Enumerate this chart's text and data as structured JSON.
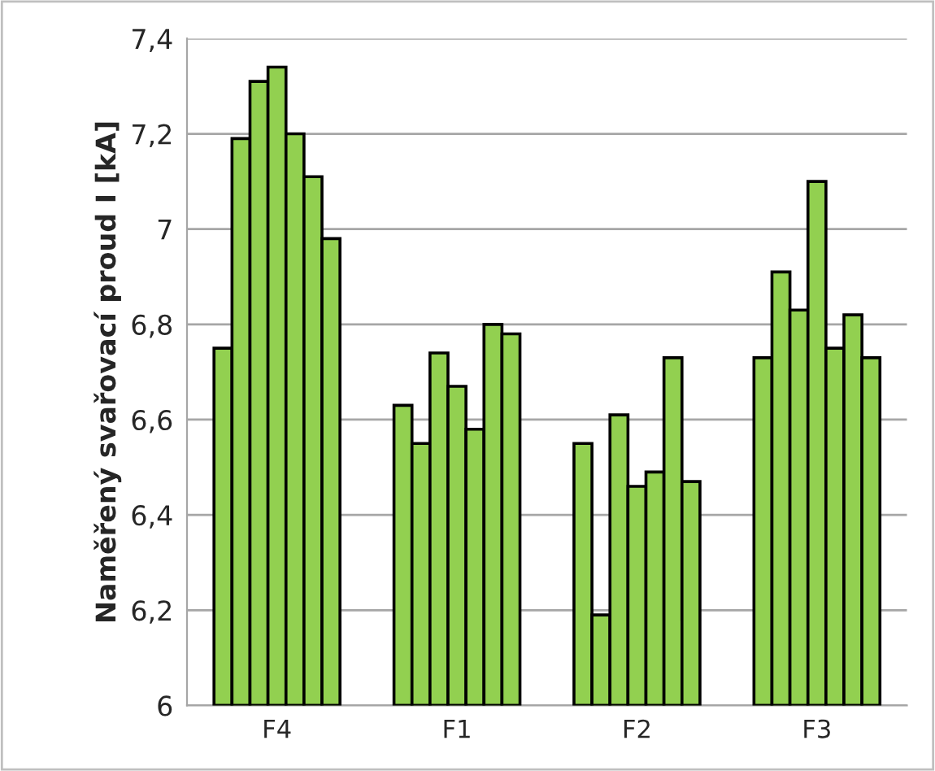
{
  "chart_data": {
    "type": "bar",
    "ylabel": "Naměřený svařovací proud I [kA]",
    "categories": [
      "F4",
      "F1",
      "F2",
      "F3"
    ],
    "series": [
      {
        "color": "#92d050",
        "values": [
          6.75,
          6.63,
          6.55,
          6.73
        ]
      },
      {
        "color": "#92d050",
        "values": [
          7.19,
          6.55,
          6.19,
          6.91
        ]
      },
      {
        "color": "#92d050",
        "values": [
          7.31,
          6.74,
          6.61,
          6.83
        ]
      },
      {
        "color": "#92d050",
        "values": [
          7.34,
          6.67,
          6.46,
          7.1
        ]
      },
      {
        "color": "#92d050",
        "values": [
          7.2,
          6.58,
          6.49,
          6.75
        ]
      },
      {
        "color": "#92d050",
        "values": [
          7.11,
          6.8,
          6.73,
          6.82
        ]
      },
      {
        "color": "#92d050",
        "values": [
          6.98,
          6.78,
          6.47,
          6.73
        ]
      }
    ],
    "ylim": [
      6,
      7.4
    ],
    "yticks": [
      6,
      {
        "value": 6.2,
        "label": "6,2"
      },
      {
        "value": 6.4,
        "label": "6,4"
      },
      {
        "value": 6.6,
        "label": "6,6"
      },
      {
        "value": 6.8,
        "label": "6,8"
      },
      7,
      {
        "value": 7.2,
        "label": "7,2"
      },
      {
        "value": 7.4,
        "label": "7,4"
      }
    ],
    "grid": "y",
    "legend": false
  }
}
